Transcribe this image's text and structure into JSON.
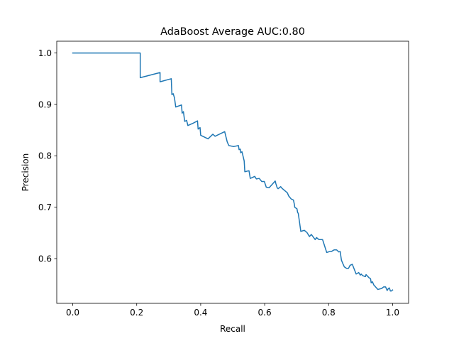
{
  "chart_data": {
    "type": "line",
    "title": "AdaBoost Average AUC:0.80",
    "xlabel": "Recall",
    "ylabel": "Precision",
    "xlim": [
      -0.05,
      1.05
    ],
    "ylim": [
      0.513,
      1.023
    ],
    "xticks": [
      0.0,
      0.2,
      0.4,
      0.6,
      0.8,
      1.0
    ],
    "xtick_labels": [
      "0.0",
      "0.2",
      "0.4",
      "0.6",
      "0.8",
      "1.0"
    ],
    "yticks": [
      0.6,
      0.7,
      0.8,
      0.9,
      1.0
    ],
    "ytick_labels": [
      "0.6",
      "0.7",
      "0.8",
      "0.9",
      "1.0"
    ],
    "grid": false,
    "line_color": "#1f77b4",
    "series": [
      {
        "x": [
          0.0,
          0.211,
          0.211,
          0.273,
          0.273,
          0.308,
          0.31,
          0.314,
          0.318,
          0.322,
          0.34,
          0.342,
          0.346,
          0.35,
          0.356,
          0.36,
          0.378,
          0.39,
          0.392,
          0.398,
          0.4,
          0.423,
          0.438,
          0.445,
          0.475,
          0.483,
          0.488,
          0.503,
          0.518,
          0.52,
          0.524,
          0.525,
          0.529,
          0.531,
          0.536,
          0.538,
          0.551,
          0.555,
          0.569,
          0.574,
          0.583,
          0.591,
          0.599,
          0.605,
          0.614,
          0.633,
          0.635,
          0.639,
          0.642,
          0.65,
          0.654,
          0.671,
          0.675,
          0.683,
          0.69,
          0.693,
          0.694,
          0.701,
          0.703,
          0.705,
          0.709,
          0.713,
          0.724,
          0.732,
          0.74,
          0.746,
          0.758,
          0.762,
          0.77,
          0.781,
          0.794,
          0.804,
          0.809,
          0.817,
          0.825,
          0.832,
          0.836,
          0.84,
          0.844,
          0.849,
          0.856,
          0.862,
          0.867,
          0.874,
          0.886,
          0.894,
          0.899,
          0.902,
          0.906,
          0.915,
          0.917,
          0.926,
          0.931,
          0.933,
          0.937,
          0.941,
          0.954,
          0.966,
          0.972,
          0.978,
          0.983,
          0.987,
          0.99,
          0.993,
          0.996,
          1.0
        ],
        "y": [
          1.0,
          1.0,
          0.952,
          0.962,
          0.944,
          0.95,
          0.919,
          0.921,
          0.913,
          0.895,
          0.899,
          0.883,
          0.886,
          0.867,
          0.869,
          0.859,
          0.864,
          0.868,
          0.852,
          0.855,
          0.84,
          0.833,
          0.842,
          0.838,
          0.847,
          0.827,
          0.82,
          0.818,
          0.82,
          0.812,
          0.813,
          0.806,
          0.808,
          0.803,
          0.79,
          0.769,
          0.771,
          0.756,
          0.76,
          0.755,
          0.756,
          0.75,
          0.75,
          0.739,
          0.738,
          0.751,
          0.746,
          0.738,
          0.736,
          0.74,
          0.737,
          0.728,
          0.722,
          0.716,
          0.714,
          0.705,
          0.7,
          0.697,
          0.69,
          0.688,
          0.671,
          0.653,
          0.655,
          0.651,
          0.643,
          0.647,
          0.637,
          0.641,
          0.637,
          0.637,
          0.612,
          0.614,
          0.614,
          0.617,
          0.617,
          0.613,
          0.614,
          0.597,
          0.591,
          0.584,
          0.581,
          0.581,
          0.587,
          0.589,
          0.57,
          0.573,
          0.568,
          0.57,
          0.567,
          0.565,
          0.569,
          0.563,
          0.561,
          0.553,
          0.555,
          0.549,
          0.54,
          0.542,
          0.545,
          0.545,
          0.538,
          0.542,
          0.543,
          0.537,
          0.537,
          0.539
        ]
      }
    ]
  }
}
